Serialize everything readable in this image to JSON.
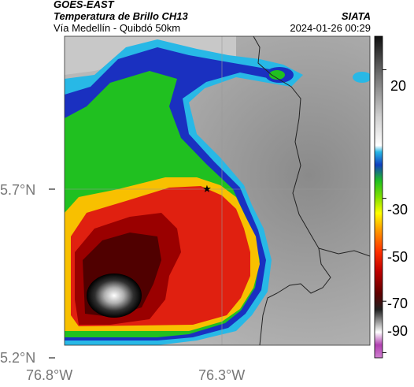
{
  "header": {
    "satellite": "GOES-EAST",
    "product": "Temperatura de Brillo CH13",
    "region": "Vía Medellín - Quibdó 50km",
    "org": "SIATA",
    "datetime": "2024-01-26 00:29"
  },
  "map": {
    "lat_labels": [
      "5.7°N",
      "5.2°N"
    ],
    "lon_labels": [
      "76.8°W",
      "76.3°W"
    ],
    "marker": "star-marker"
  },
  "colorbar": {
    "tick_labels": [
      "20",
      "-30",
      "-50",
      "-70",
      "-90"
    ],
    "tick_values": [
      20,
      -30,
      -50,
      -70,
      -90
    ],
    "range": [
      -92,
      33
    ],
    "colors": {
      "warm_gray": "#9a9a9a",
      "cyan": "#28b8e6",
      "blue": "#1020b0",
      "green": "#20c020",
      "yellow": "#f4f000",
      "red": "#e02010",
      "darkred": "#500000",
      "black": "#000000",
      "magenta": "#c040c0"
    }
  }
}
